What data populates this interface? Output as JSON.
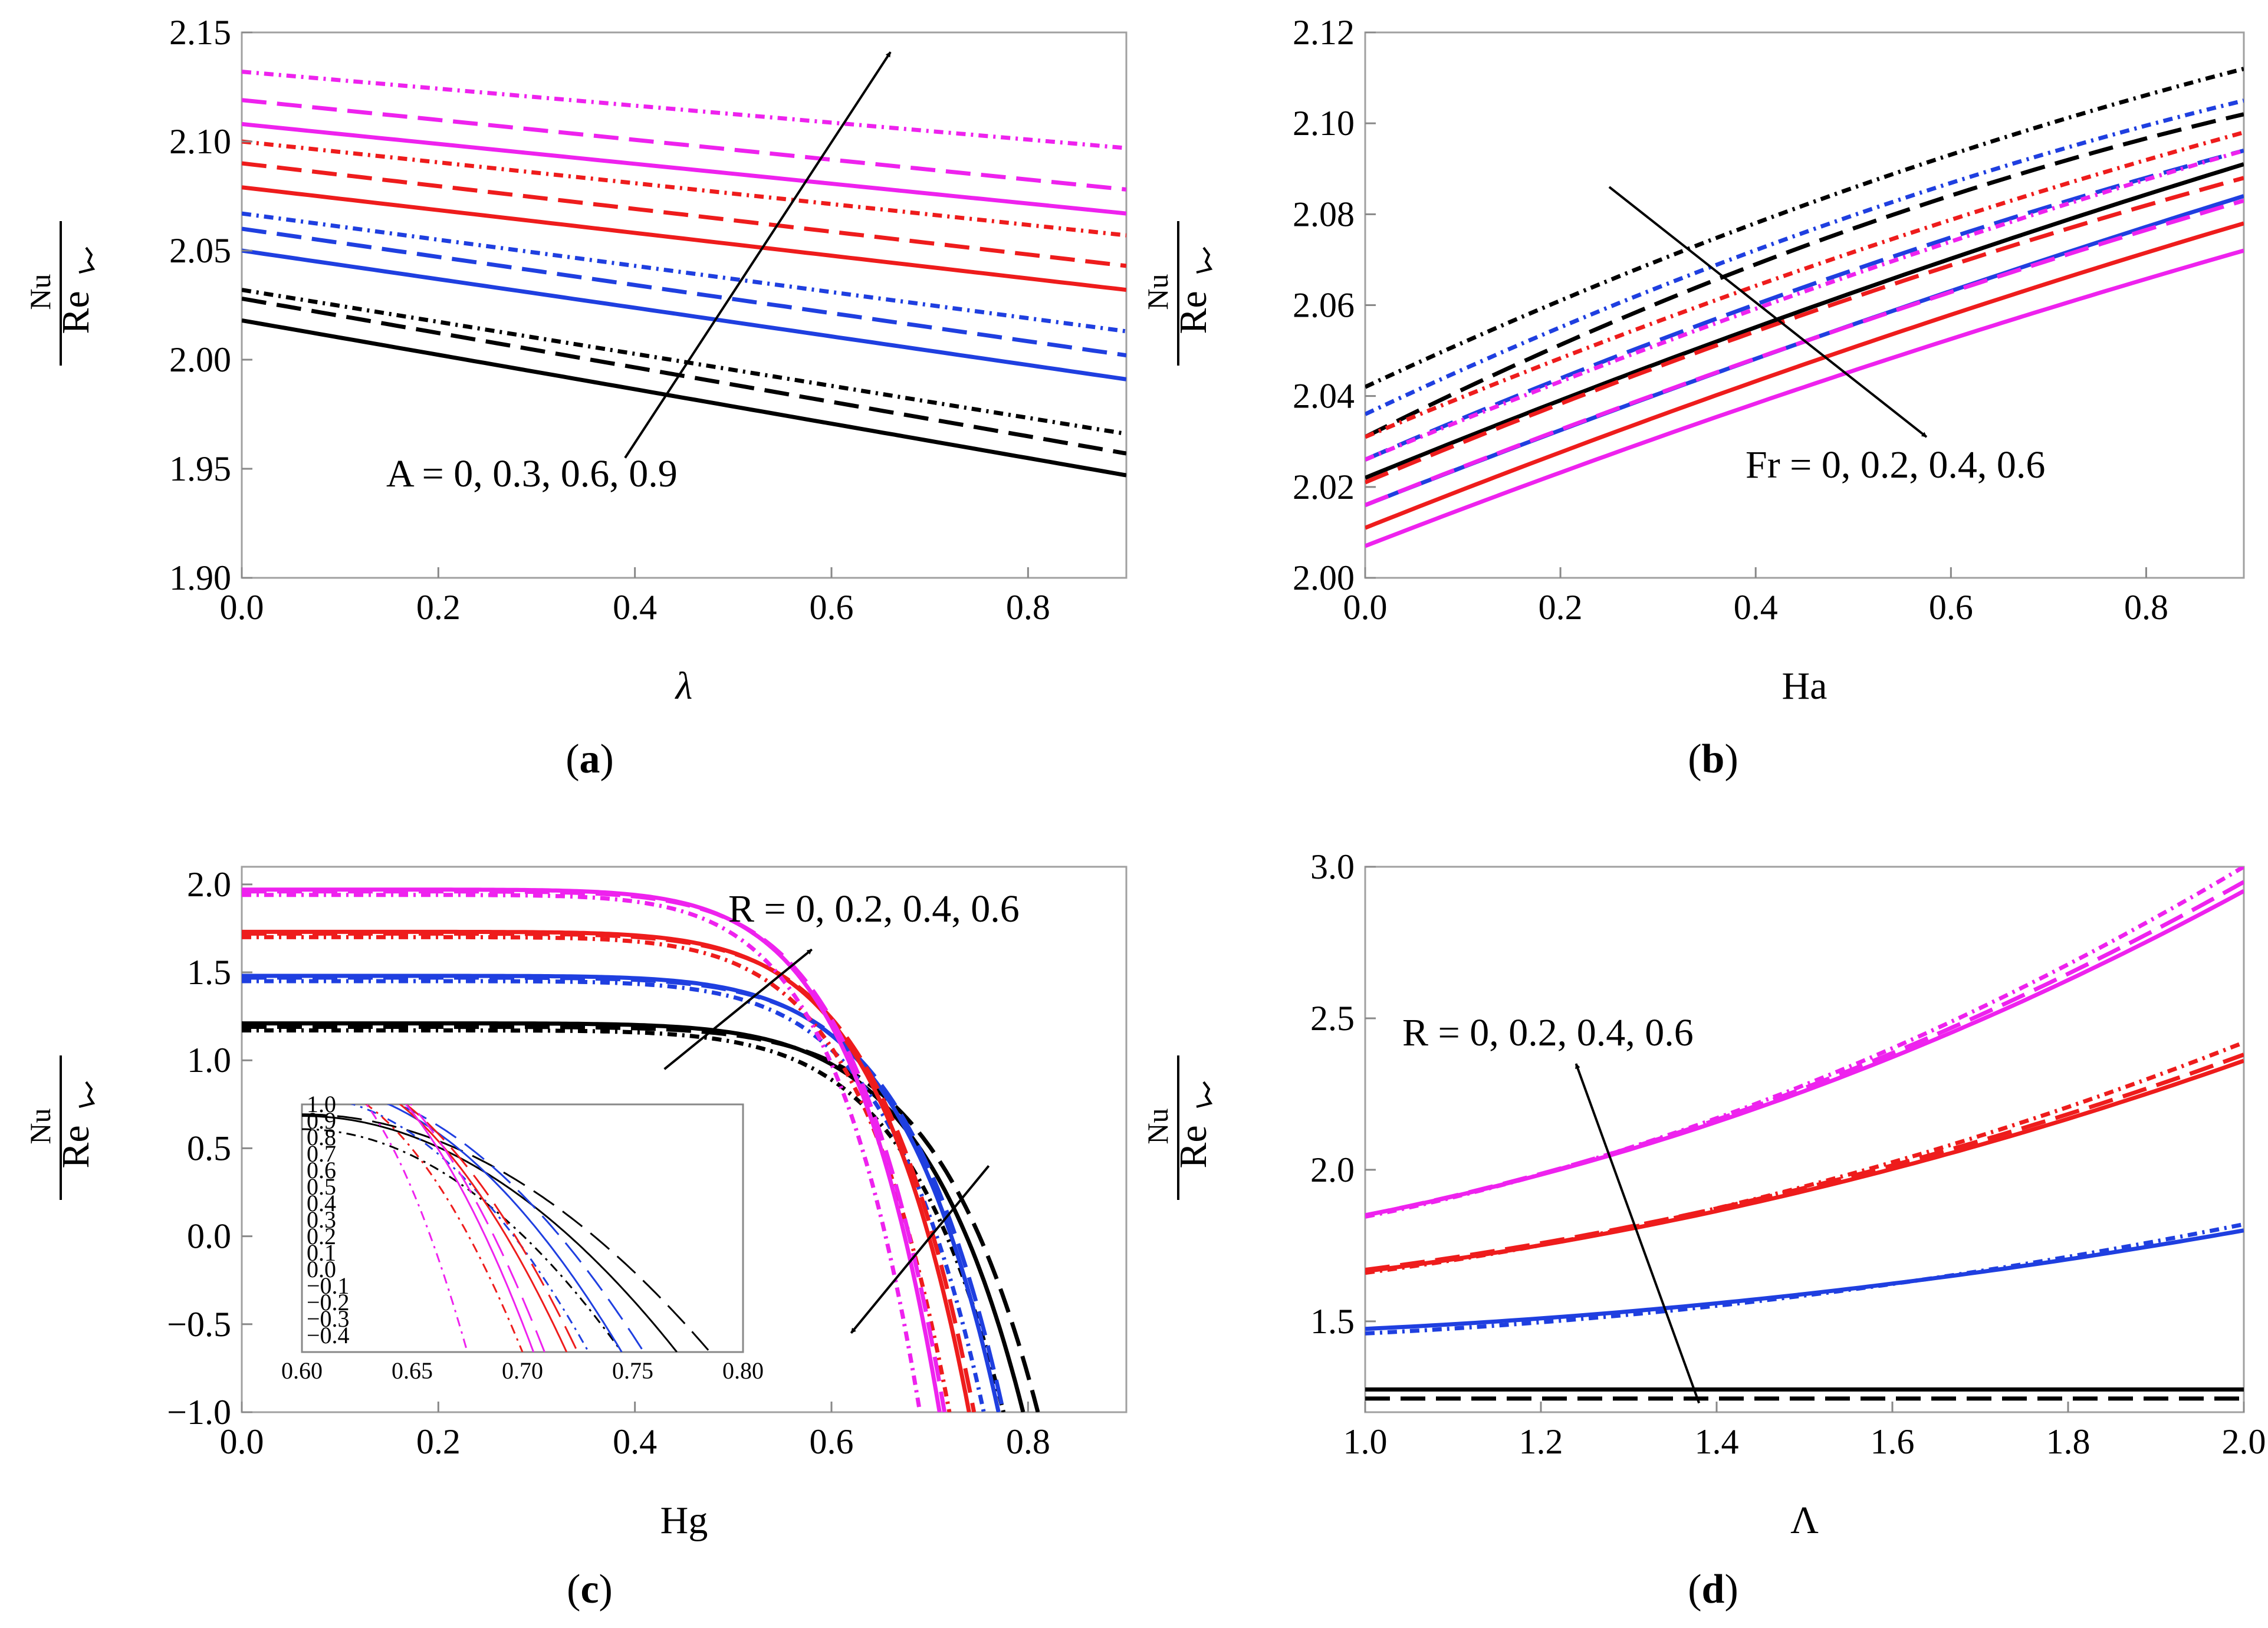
{
  "colors": {
    "black": "#000000",
    "blue": "#1f3fe0",
    "red": "#ee1c1c",
    "magenta": "#ee22ee"
  },
  "ylabel": {
    "numerator": "Nu",
    "radicand": "Re"
  },
  "chart_data": [
    {
      "id": "a",
      "type": "line",
      "caption_letter": "a",
      "xlabel": "λ",
      "xlim": [
        0,
        0.9
      ],
      "ylim": [
        1.9,
        2.15
      ],
      "xticks": [
        "0.0",
        "0.2",
        "0.4",
        "0.6",
        "0.8"
      ],
      "yticks": [
        "1.90",
        "1.95",
        "2.00",
        "2.05",
        "2.10",
        "2.15"
      ],
      "annotation": "A = 0, 0.3, 0.6, 0.9",
      "series": [
        {
          "name": "A=0 solid",
          "color": "black",
          "dash": "solid",
          "x": [
            0,
            0.9
          ],
          "y": [
            2.018,
            1.947
          ]
        },
        {
          "name": "A=0 dashed",
          "color": "black",
          "dash": "dashed",
          "x": [
            0,
            0.9
          ],
          "y": [
            2.028,
            1.957
          ]
        },
        {
          "name": "A=0 dotted",
          "color": "black",
          "dash": "dotted",
          "x": [
            0,
            0.9
          ],
          "y": [
            2.032,
            1.966
          ]
        },
        {
          "name": "A=0.3 solid",
          "color": "blue",
          "dash": "solid",
          "x": [
            0,
            0.9
          ],
          "y": [
            2.05,
            1.991
          ]
        },
        {
          "name": "A=0.3 dashed",
          "color": "blue",
          "dash": "dashed",
          "x": [
            0,
            0.9
          ],
          "y": [
            2.06,
            2.002
          ]
        },
        {
          "name": "A=0.3 dotted",
          "color": "blue",
          "dash": "dotted",
          "x": [
            0,
            0.9
          ],
          "y": [
            2.067,
            2.013
          ]
        },
        {
          "name": "A=0.6 solid",
          "color": "red",
          "dash": "solid",
          "x": [
            0,
            0.9
          ],
          "y": [
            2.079,
            2.032
          ]
        },
        {
          "name": "A=0.6 dashed",
          "color": "red",
          "dash": "dashed",
          "x": [
            0,
            0.9
          ],
          "y": [
            2.09,
            2.043
          ]
        },
        {
          "name": "A=0.6 dotted",
          "color": "red",
          "dash": "dotted",
          "x": [
            0,
            0.9
          ],
          "y": [
            2.1,
            2.057
          ]
        },
        {
          "name": "A=0.9 solid",
          "color": "magenta",
          "dash": "solid",
          "x": [
            0,
            0.9
          ],
          "y": [
            2.108,
            2.067
          ]
        },
        {
          "name": "A=0.9 dashed",
          "color": "magenta",
          "dash": "dashed",
          "x": [
            0,
            0.9
          ],
          "y": [
            2.119,
            2.078
          ]
        },
        {
          "name": "A=0.9 dotted",
          "color": "magenta",
          "dash": "dotted",
          "x": [
            0,
            0.9
          ],
          "y": [
            2.132,
            2.097
          ]
        }
      ],
      "arrows": [
        {
          "from": [
            0.39,
            1.955
          ],
          "to": [
            0.66,
            2.141
          ]
        }
      ]
    },
    {
      "id": "b",
      "type": "line",
      "caption_letter": "b",
      "xlabel": "Ha",
      "xlim": [
        0,
        0.9
      ],
      "ylim": [
        2.0,
        2.12
      ],
      "xticks": [
        "0.0",
        "0.2",
        "0.4",
        "0.6",
        "0.8"
      ],
      "yticks": [
        "2.00",
        "2.02",
        "2.04",
        "2.06",
        "2.08",
        "2.10",
        "2.12"
      ],
      "annotation": "Fr = 0, 0.2, 0.4, 0.6",
      "series": [
        {
          "name": "Fr=0 solid",
          "color": "black",
          "dash": "solid",
          "x": [
            0,
            0.45,
            0.9
          ],
          "y": [
            2.022,
            2.059,
            2.091
          ]
        },
        {
          "name": "Fr=0 dashed",
          "color": "black",
          "dash": "dashed",
          "x": [
            0,
            0.45,
            0.9
          ],
          "y": [
            2.031,
            2.073,
            2.102
          ]
        },
        {
          "name": "Fr=0 dotted",
          "color": "black",
          "dash": "dotted",
          "x": [
            0,
            0.45,
            0.9
          ],
          "y": [
            2.042,
            2.082,
            2.112
          ]
        },
        {
          "name": "Fr=0.2 solid",
          "color": "blue",
          "dash": "solid",
          "x": [
            0,
            0.45,
            0.9
          ],
          "y": [
            2.016,
            2.052,
            2.084
          ]
        },
        {
          "name": "Fr=0.2 dashed",
          "color": "blue",
          "dash": "dashed",
          "x": [
            0,
            0.45,
            0.9
          ],
          "y": [
            2.026,
            2.064,
            2.094
          ]
        },
        {
          "name": "Fr=0.2 dotted",
          "color": "blue",
          "dash": "dotted",
          "x": [
            0,
            0.45,
            0.9
          ],
          "y": [
            2.036,
            2.076,
            2.105
          ]
        },
        {
          "name": "Fr=0.4 solid",
          "color": "red",
          "dash": "solid",
          "x": [
            0,
            0.45,
            0.9
          ],
          "y": [
            2.011,
            2.047,
            2.078
          ]
        },
        {
          "name": "Fr=0.4 dashed",
          "color": "red",
          "dash": "dashed",
          "x": [
            0,
            0.45,
            0.9
          ],
          "y": [
            2.021,
            2.058,
            2.088
          ]
        },
        {
          "name": "Fr=0.4 dotted",
          "color": "red",
          "dash": "dotted",
          "x": [
            0,
            0.45,
            0.9
          ],
          "y": [
            2.031,
            2.068,
            2.098
          ]
        },
        {
          "name": "Fr=0.6 solid",
          "color": "magenta",
          "dash": "solid",
          "x": [
            0,
            0.45,
            0.9
          ],
          "y": [
            2.007,
            2.042,
            2.072
          ]
        },
        {
          "name": "Fr=0.6 dashed",
          "color": "magenta",
          "dash": "dashed",
          "x": [
            0,
            0.45,
            0.9
          ],
          "y": [
            2.016,
            2.052,
            2.083
          ]
        },
        {
          "name": "Fr=0.6 dotted",
          "color": "magenta",
          "dash": "dotted",
          "x": [
            0,
            0.45,
            0.9
          ],
          "y": [
            2.026,
            2.063,
            2.094
          ]
        }
      ],
      "arrows": [
        {
          "from": [
            0.25,
            2.086
          ],
          "to": [
            0.575,
            2.031
          ]
        }
      ]
    },
    {
      "id": "c",
      "type": "line",
      "caption_letter": "c",
      "xlabel": "Hg",
      "xlim": [
        0,
        0.9
      ],
      "ylim": [
        -1.0,
        2.1
      ],
      "xticks": [
        "0.0",
        "0.2",
        "0.4",
        "0.6",
        "0.8"
      ],
      "yticks": [
        "−1.0",
        "−0.5",
        "0.0",
        "0.5",
        "1.0",
        "1.5",
        "2.0"
      ],
      "annotation": "R = 0, 0.2, 0.4, 0.6",
      "series": [
        {
          "name": "R=0 solid",
          "color": "black",
          "dash": "solid",
          "y0": 1.21,
          "xz": 0.795
        },
        {
          "name": "R=0 dashed",
          "color": "black",
          "dash": "dashed",
          "y0": 1.19,
          "xz": 0.81
        },
        {
          "name": "R=0 dotted",
          "color": "black",
          "dash": "dotted",
          "y0": 1.17,
          "xz": 0.775
        },
        {
          "name": "R=0.2 solid",
          "color": "blue",
          "dash": "solid",
          "y0": 1.48,
          "xz": 0.77
        },
        {
          "name": "R=0.2 dashed",
          "color": "blue",
          "dash": "dashed",
          "y0": 1.47,
          "xz": 0.775
        },
        {
          "name": "R=0.2 dotted",
          "color": "blue",
          "dash": "dotted",
          "y0": 1.45,
          "xz": 0.755
        },
        {
          "name": "R=0.4 solid",
          "color": "red",
          "dash": "solid",
          "y0": 1.73,
          "xz": 0.74
        },
        {
          "name": "R=0.4 dashed",
          "color": "red",
          "dash": "dashed",
          "y0": 1.72,
          "xz": 0.745
        },
        {
          "name": "R=0.4 dotted",
          "color": "red",
          "dash": "dotted",
          "y0": 1.7,
          "xz": 0.72
        },
        {
          "name": "R=0.6 solid",
          "color": "magenta",
          "dash": "solid",
          "y0": 1.97,
          "xz": 0.71
        },
        {
          "name": "R=0.6 dashed",
          "color": "magenta",
          "dash": "dashed",
          "y0": 1.96,
          "xz": 0.715
        },
        {
          "name": "R=0.6 dotted",
          "color": "magenta",
          "dash": "dotted",
          "y0": 1.94,
          "xz": 0.69
        }
      ],
      "arrows": [
        {
          "from": [
            0.43,
            0.95
          ],
          "to": [
            0.58,
            1.63
          ]
        },
        {
          "from": [
            0.76,
            0.4
          ],
          "to": [
            0.62,
            -0.55
          ]
        }
      ],
      "inset": {
        "xlim": [
          0.6,
          0.8
        ],
        "ylim": [
          -0.5,
          1.0
        ],
        "xticks": [
          "0.60",
          "0.65",
          "0.70",
          "0.75",
          "0.80"
        ],
        "yticks": [
          "−0.4",
          "−0.3",
          "−0.2",
          "−0.1",
          "0.0",
          "0.1",
          "0.2",
          "0.3",
          "0.4",
          "0.5",
          "0.6",
          "0.7",
          "0.8",
          "0.9",
          "1.0"
        ],
        "series": [
          {
            "color": "black",
            "dash": "solid",
            "y0": 0.93,
            "xz": 0.77
          },
          {
            "color": "black",
            "dash": "dashed",
            "y0": 0.94,
            "xz": 0.785
          },
          {
            "color": "black",
            "dash": "dotted",
            "y0": 0.85,
            "xz": 0.745
          },
          {
            "color": "blue",
            "dash": "solid",
            "y0": 1.12,
            "xz": 0.745
          },
          {
            "color": "blue",
            "dash": "dashed",
            "y0": 1.13,
            "xz": 0.755
          },
          {
            "color": "blue",
            "dash": "dotted",
            "y0": 1.05,
            "xz": 0.73
          },
          {
            "color": "red",
            "dash": "solid",
            "y0": 1.24,
            "xz": 0.72
          },
          {
            "color": "red",
            "dash": "dashed",
            "y0": 1.25,
            "xz": 0.725
          },
          {
            "color": "red",
            "dash": "dotted",
            "y0": 1.14,
            "xz": 0.7
          },
          {
            "color": "magenta",
            "dash": "solid",
            "y0": 1.38,
            "xz": 0.705
          },
          {
            "color": "magenta",
            "dash": "dashed",
            "y0": 1.38,
            "xz": 0.71
          },
          {
            "color": "magenta",
            "dash": "dotted",
            "y0": 1.27,
            "xz": 0.675
          }
        ]
      }
    },
    {
      "id": "d",
      "type": "line",
      "caption_letter": "d",
      "xlabel": "Λ",
      "xlim": [
        1.0,
        2.0
      ],
      "ylim": [
        1.2,
        3.0
      ],
      "xticks": [
        "1.0",
        "1.2",
        "1.4",
        "1.6",
        "1.8",
        "2.0"
      ],
      "yticks": [
        "1.5",
        "2.0",
        "2.5",
        "3.0"
      ],
      "annotation": "R = 0, 0.2, 0.4, 0.6",
      "series": [
        {
          "name": "R=0 solid",
          "color": "black",
          "dash": "solid",
          "x": [
            1.0,
            1.5,
            2.0
          ],
          "y": [
            1.275,
            1.275,
            1.275
          ]
        },
        {
          "name": "R=0 dashed",
          "color": "black",
          "dash": "dashed",
          "x": [
            1.0,
            1.5,
            2.0
          ],
          "y": [
            1.245,
            1.245,
            1.245
          ]
        },
        {
          "name": "R=0.2 solid",
          "color": "blue",
          "dash": "solid",
          "x": [
            1.0,
            1.5,
            2.0
          ],
          "y": [
            1.475,
            1.59,
            1.8
          ]
        },
        {
          "name": "R=0.2 dotted",
          "color": "blue",
          "dash": "dotted",
          "x": [
            1.0,
            1.5,
            2.0
          ],
          "y": [
            1.46,
            1.585,
            1.82
          ]
        },
        {
          "name": "R=0.4 solid",
          "color": "red",
          "dash": "solid",
          "x": [
            1.0,
            1.5,
            2.0
          ],
          "y": [
            1.665,
            1.93,
            2.36
          ]
        },
        {
          "name": "R=0.4 dashed",
          "color": "red",
          "dash": "dashed",
          "x": [
            1.0,
            1.5,
            2.0
          ],
          "y": [
            1.67,
            1.94,
            2.38
          ]
        },
        {
          "name": "R=0.4 dotted",
          "color": "red",
          "dash": "dotted",
          "x": [
            1.0,
            1.5,
            2.0
          ],
          "y": [
            1.66,
            1.945,
            2.42
          ]
        },
        {
          "name": "R=0.6 solid",
          "color": "magenta",
          "dash": "solid",
          "x": [
            1.0,
            1.5,
            2.0
          ],
          "y": [
            1.85,
            2.26,
            2.92
          ]
        },
        {
          "name": "R=0.6 dashed",
          "color": "magenta",
          "dash": "dashed",
          "x": [
            1.0,
            1.5,
            2.0
          ],
          "y": [
            1.85,
            2.27,
            2.95
          ]
        },
        {
          "name": "R=0.6 dotted",
          "color": "magenta",
          "dash": "dotted",
          "x": [
            1.0,
            1.5,
            2.0
          ],
          "y": [
            1.845,
            2.28,
            3.0
          ]
        }
      ],
      "arrows": [
        {
          "from": [
            1.38,
            1.23
          ],
          "to": [
            1.24,
            2.35
          ]
        }
      ]
    }
  ]
}
